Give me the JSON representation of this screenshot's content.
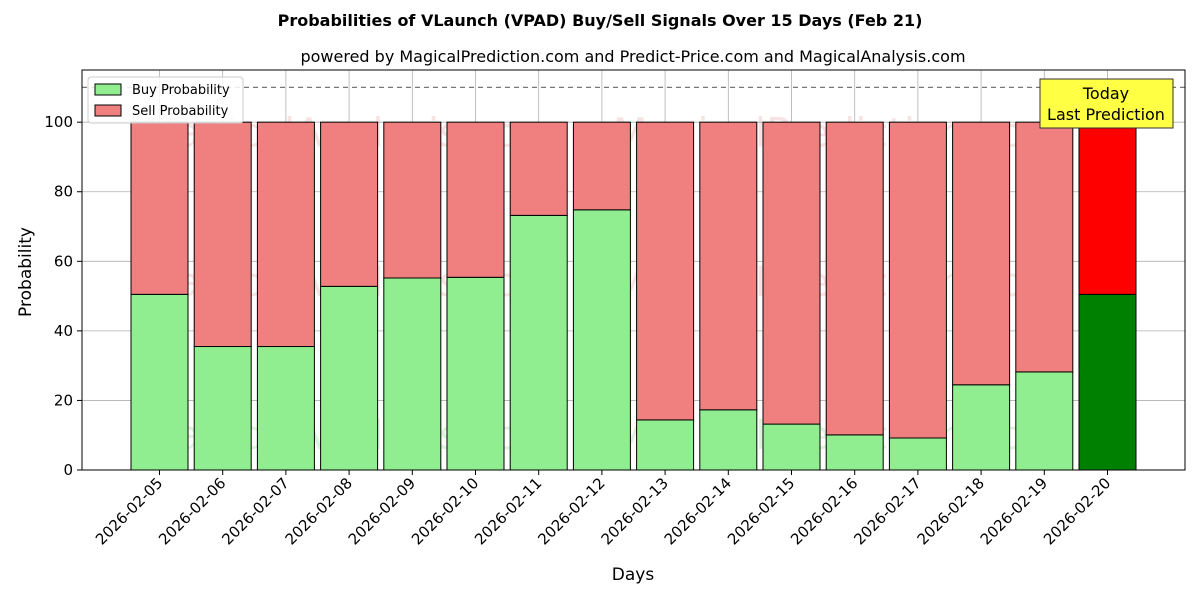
{
  "chart_data": {
    "type": "bar",
    "stacked": true,
    "title": "Probabilities of VLaunch (VPAD) Buy/Sell Signals Over 15 Days (Feb 21)",
    "subtitle": "powered by MagicalPrediction.com and Predict-Price.com and MagicalAnalysis.com",
    "xlabel": "Days",
    "ylabel": "Probability",
    "ylim": [
      0,
      115
    ],
    "yticks": [
      0,
      20,
      40,
      60,
      80,
      100
    ],
    "reference_line": 110,
    "grid": true,
    "legend_position": "top-left",
    "categories": [
      "2026-02-05",
      "2026-02-06",
      "2026-02-07",
      "2026-02-08",
      "2026-02-09",
      "2026-02-10",
      "2026-02-11",
      "2026-02-12",
      "2026-02-13",
      "2026-02-14",
      "2026-02-15",
      "2026-02-16",
      "2026-02-17",
      "2026-02-18",
      "2026-02-19",
      "2026-02-20"
    ],
    "series": [
      {
        "name": "Buy Probability",
        "color": "#90ee90",
        "today_color": "#008000",
        "values": [
          50.5,
          35.5,
          35.5,
          52.8,
          55.2,
          55.4,
          73.2,
          74.8,
          14.4,
          17.3,
          13.2,
          10.1,
          9.2,
          24.5,
          28.2,
          50.5
        ]
      },
      {
        "name": "Sell Probability",
        "color": "#f08080",
        "today_color": "#ff0000",
        "values": [
          49.5,
          64.5,
          64.5,
          47.2,
          44.8,
          44.6,
          26.8,
          25.2,
          85.6,
          82.7,
          86.8,
          89.9,
          90.8,
          75.5,
          71.8,
          49.5
        ]
      }
    ],
    "annotation": {
      "lines": [
        "Today",
        "Last Prediction"
      ],
      "color": "#ffff44"
    },
    "watermarks": [
      "MagicalAnalysis.com",
      "MagicalPrediction.com"
    ]
  }
}
